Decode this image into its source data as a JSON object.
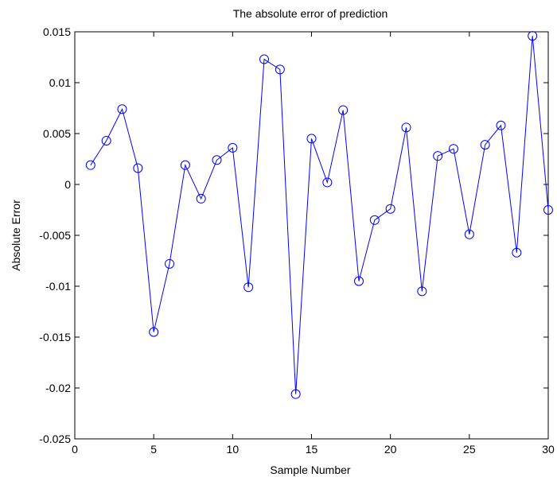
{
  "chart_data": {
    "type": "line",
    "title": "The absolute error of prediction",
    "xlabel": "Sample Number",
    "ylabel": "Absolute Error",
    "xlim": [
      0,
      30
    ],
    "ylim": [
      -0.025,
      0.015
    ],
    "x_ticks": [
      0,
      5,
      10,
      15,
      20,
      25,
      30
    ],
    "x_tick_labels": [
      "0",
      "5",
      "10",
      "15",
      "20",
      "25",
      "30"
    ],
    "y_ticks": [
      0.015,
      0.01,
      0.005,
      0,
      -0.005,
      -0.01,
      -0.015,
      -0.02,
      -0.025
    ],
    "y_tick_labels": [
      "0.015",
      "0.01",
      "0.005",
      "0",
      "-0.005",
      "-0.01",
      "-0.015",
      "-0.02",
      "-0.025"
    ],
    "grid": false,
    "legend": "none",
    "series": [
      {
        "color": "#0000ff",
        "marker": "circle",
        "x": [
          1,
          2,
          3,
          4,
          5,
          6,
          7,
          8,
          9,
          10,
          11,
          12,
          13,
          14,
          15,
          16,
          17,
          18,
          19,
          20,
          21,
          22,
          23,
          24,
          25,
          26,
          27,
          28,
          29,
          30
        ],
        "y": [
          0.0019,
          0.0043,
          0.0074,
          0.0016,
          -0.0145,
          -0.0078,
          0.0019,
          -0.0014,
          0.0024,
          0.0036,
          -0.0101,
          0.0123,
          0.0113,
          -0.0206,
          0.0045,
          0.0002,
          0.0073,
          -0.0095,
          -0.0035,
          -0.0024,
          0.0056,
          -0.0105,
          0.0028,
          0.0035,
          -0.0049,
          0.0039,
          0.0058,
          -0.0067,
          0.0146,
          -0.0025
        ]
      }
    ]
  }
}
